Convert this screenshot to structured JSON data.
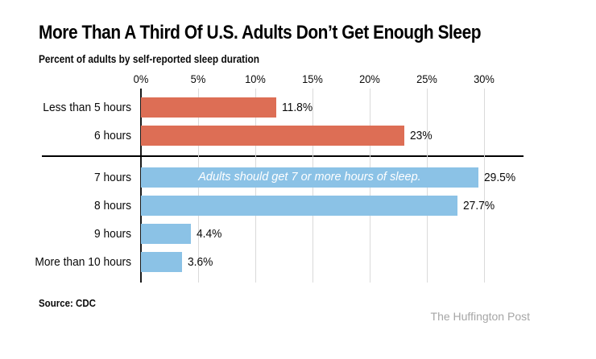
{
  "header": {
    "title": "More Than A Third Of U.S. Adults Don’t Get Enough Sleep",
    "subtitle": "Percent of adults by self-reported sleep duration"
  },
  "chart_data": {
    "type": "bar",
    "orientation": "horizontal",
    "categories": [
      "Less than 5 hours",
      "6 hours",
      "7 hours",
      "8 hours",
      "9 hours",
      "More than 10 hours"
    ],
    "values": [
      11.8,
      23,
      29.5,
      27.7,
      4.4,
      3.6
    ],
    "value_labels": [
      "11.8%",
      "23%",
      "29.5%",
      "27.7%",
      "4.4%",
      "3.6%"
    ],
    "groups": [
      "insufficient",
      "insufficient",
      "sufficient",
      "sufficient",
      "sufficient",
      "sufficient"
    ],
    "series_colors": {
      "insufficient": "#dd6e55",
      "sufficient": "#8bc2e6"
    },
    "x_ticks": [
      "0%",
      "5%",
      "10%",
      "15%",
      "20%",
      "25%",
      "30%"
    ],
    "xlim": [
      0,
      30
    ],
    "grid": "vertical",
    "separator_after_row": 1,
    "annotation": "Adults should get 7 or more hours of sleep.",
    "annotation_row": 2,
    "annotation_color": "#ffffff"
  },
  "footer": {
    "source": "Source: CDC",
    "attribution": "The Huffington Post"
  }
}
